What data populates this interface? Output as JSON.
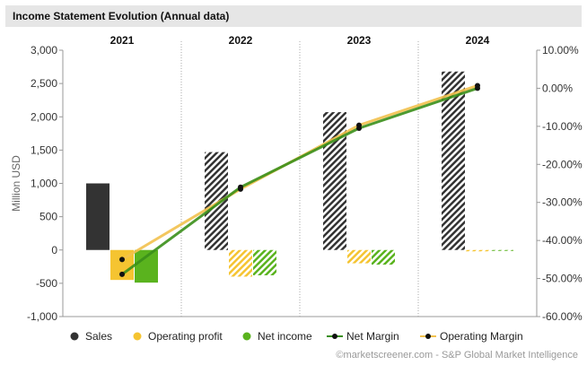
{
  "title": "Income Statement Evolution (Annual data)",
  "credit": "©marketscreener.com - S&P Global Market Intelligence",
  "colors": {
    "sales": "#333333",
    "operating_profit": "#f5c431",
    "net_income": "#5ab31e",
    "net_margin": "#3a8f1a",
    "operating_margin": "#f2c14e",
    "grid": "#cccccc",
    "divider": "#aaaaaa"
  },
  "chart_data": {
    "type": "bar",
    "categories": [
      "2021",
      "2022",
      "2023",
      "2024"
    ],
    "ylabel": "Million USD",
    "ylim": [
      -1000,
      3000
    ],
    "y_ticks": [
      "3,000",
      "2,500",
      "2,000",
      "1,500",
      "1,000",
      "500",
      "0",
      "-500",
      "-1,000"
    ],
    "y2lim": [
      -60,
      10
    ],
    "y2_ticks": [
      "10.00%",
      "0.00%",
      "-10.00%",
      "-20.00%",
      "-30.00%",
      "-40.00%",
      "-50.00%",
      "-60.00%"
    ],
    "grid": false,
    "legend_position": "bottom",
    "series": [
      {
        "name": "Sales",
        "kind": "bar",
        "values": [
          1000,
          1470,
          2070,
          2680
        ],
        "estimate": [
          false,
          true,
          true,
          true
        ]
      },
      {
        "name": "Operating profit",
        "kind": "bar",
        "values": [
          -450,
          -400,
          -200,
          -20
        ],
        "estimate": [
          false,
          true,
          true,
          true
        ]
      },
      {
        "name": "Net income",
        "kind": "bar",
        "values": [
          -490,
          -380,
          -220,
          0
        ],
        "estimate": [
          false,
          true,
          true,
          true
        ]
      },
      {
        "name": "Net Margin",
        "kind": "line",
        "axis": "right",
        "values": [
          -48.9,
          -26.0,
          -10.5,
          0.0
        ]
      },
      {
        "name": "Operating Margin",
        "kind": "line",
        "axis": "right",
        "values": [
          -45.0,
          -26.5,
          -9.7,
          0.7
        ]
      }
    ]
  }
}
